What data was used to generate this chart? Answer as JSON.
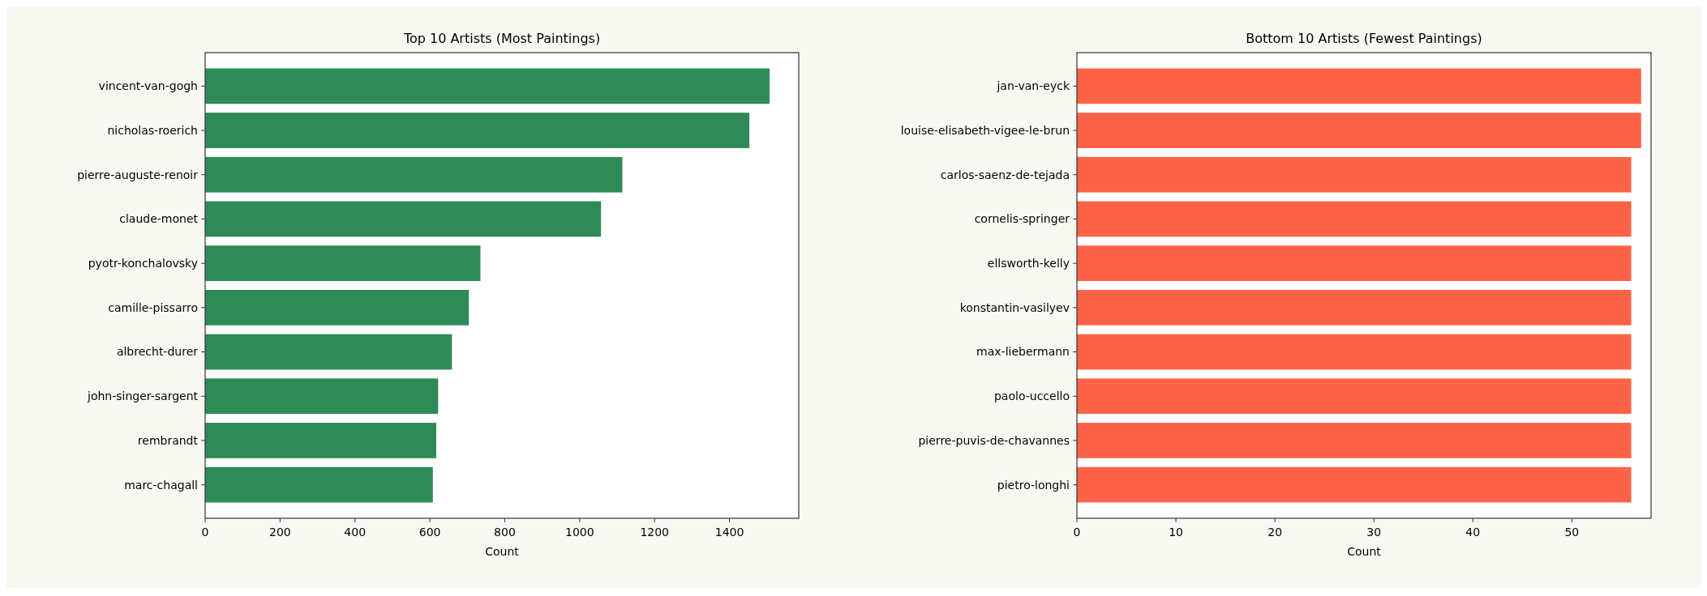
{
  "chart_data": [
    {
      "type": "bar",
      "orientation": "horizontal",
      "title": "Top 10 Artists (Most Paintings)",
      "xlabel": "Count",
      "categories": [
        "vincent-van-gogh",
        "nicholas-roerich",
        "pierre-auguste-renoir",
        "claude-monet",
        "pyotr-konchalovsky",
        "camille-pissarro",
        "albrecht-durer",
        "john-singer-sargent",
        "rembrandt",
        "marc-chagall"
      ],
      "values": [
        1507,
        1453,
        1114,
        1057,
        735,
        704,
        659,
        622,
        617,
        608
      ],
      "color": "#2e8b57",
      "xlim": [
        0,
        1585
      ],
      "xticks": [
        0,
        200,
        400,
        600,
        800,
        1000,
        1200,
        1400
      ],
      "grid": false
    },
    {
      "type": "bar",
      "orientation": "horizontal",
      "title": "Bottom 10 Artists (Fewest Paintings)",
      "xlabel": "Count",
      "categories": [
        "jan-van-eyck",
        "louise-elisabeth-vigee-le-brun",
        "carlos-saenz-de-tejada",
        "cornelis-springer",
        "ellsworth-kelly",
        "konstantin-vasilyev",
        "max-liebermann",
        "paolo-uccello",
        "pierre-puvis-de-chavannes",
        "pietro-longhi"
      ],
      "values": [
        57,
        57,
        56,
        56,
        56,
        56,
        56,
        56,
        56,
        56
      ],
      "color": "#ff6347",
      "xlim": [
        0,
        58
      ],
      "xticks": [
        0,
        10,
        20,
        30,
        40,
        50
      ],
      "grid": false
    }
  ]
}
